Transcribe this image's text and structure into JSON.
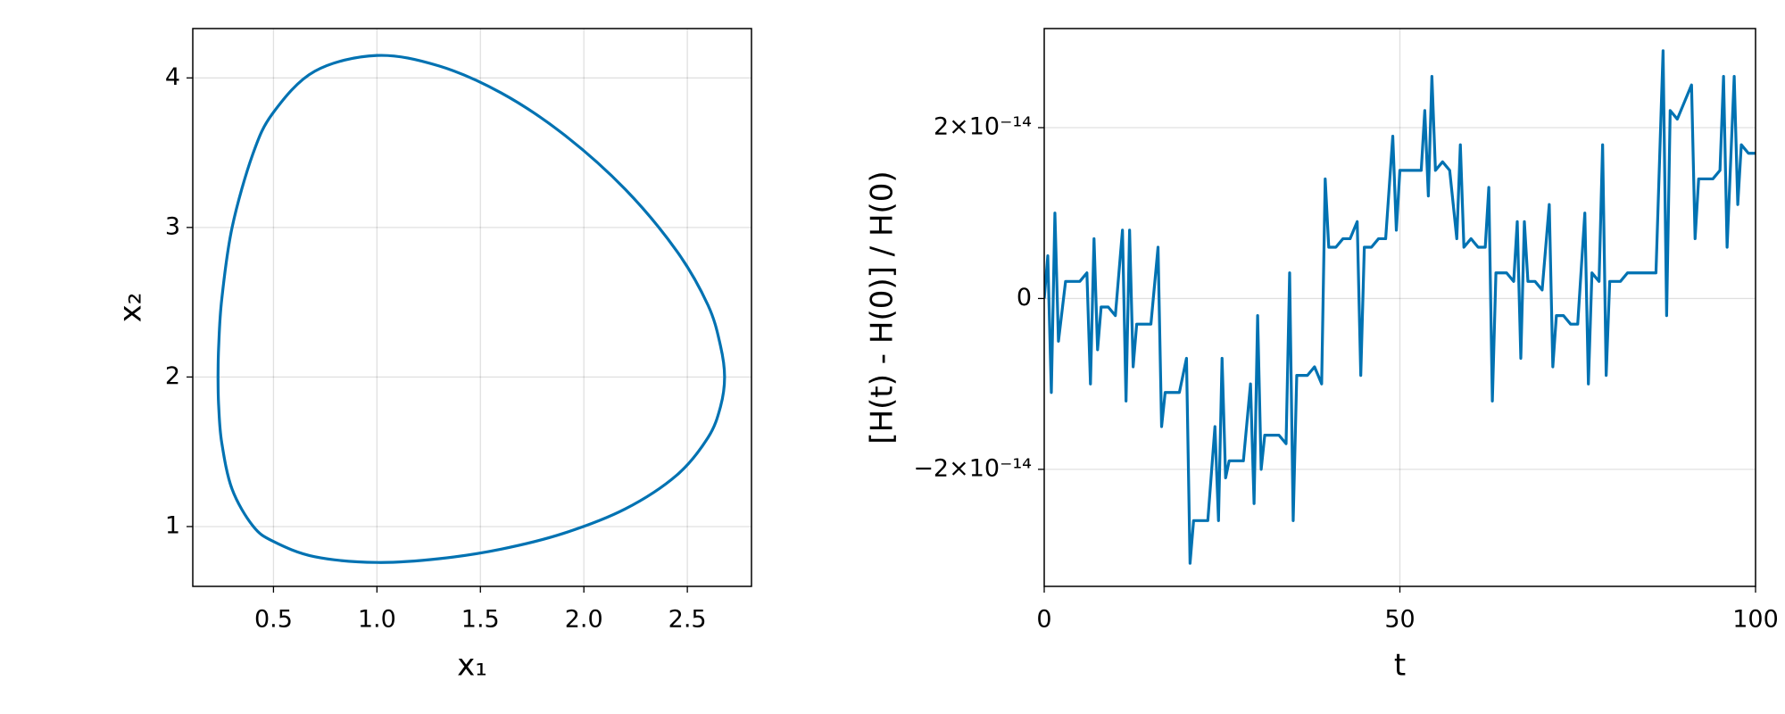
{
  "chart_data": [
    {
      "type": "line",
      "xlabel": "x₁",
      "ylabel": "x₂",
      "color": "#0072b2",
      "grid": true,
      "xlim": [
        0.11,
        2.81
      ],
      "ylim": [
        0.6,
        4.33
      ],
      "xticks": [
        0.5,
        {
          "value": 1.0,
          "label": "1.0"
        },
        1.5,
        {
          "value": 2.0,
          "label": "2.0"
        },
        2.5
      ],
      "yticks": [
        1,
        2,
        3,
        4
      ],
      "x": [
        0.232,
        0.235,
        0.25,
        0.3,
        0.4,
        0.5,
        0.7,
        1.0,
        1.3,
        1.6,
        1.9,
        2.2,
        2.45,
        2.6,
        2.66,
        2.68,
        2.66,
        2.6,
        2.45,
        2.2,
        1.9,
        1.6,
        1.3,
        1.0,
        0.7,
        0.5,
        0.4,
        0.3,
        0.25,
        0.235,
        0.232
      ],
      "values": [
        2,
        2.2,
        2.52,
        3.0,
        3.49,
        3.77,
        4.045,
        4.15,
        4.08,
        3.9,
        3.625,
        3.255,
        2.84,
        2.48,
        2.21,
        2,
        1.8,
        1.595,
        1.345,
        1.118,
        0.954,
        0.849,
        0.785,
        0.76,
        0.798,
        0.9,
        1.005,
        1.25,
        1.56,
        1.81,
        2
      ]
    },
    {
      "type": "line",
      "xlabel": "t",
      "ylabel": "[H(t) - H(0)] / H(0)",
      "color": "#0072b2",
      "grid": true,
      "xlim": [
        0,
        100
      ],
      "ylim": [
        -3.37e-14,
        3.16e-14
      ],
      "xticks": [
        0,
        50,
        100
      ],
      "yticks": [
        {
          "value": -2e-14,
          "label": "−2×10⁻¹⁴"
        },
        0,
        {
          "value": 2e-14,
          "label": "2×10⁻¹⁴"
        }
      ],
      "x": [
        0,
        0.5,
        1,
        1.5,
        2,
        3,
        4,
        5,
        6,
        6.5,
        7,
        7.5,
        8,
        9,
        10,
        11,
        11.5,
        12,
        12.5,
        13,
        14,
        15,
        16,
        16.5,
        17,
        18,
        19,
        20,
        20.5,
        21,
        22,
        23,
        24,
        24.5,
        25,
        25.5,
        26,
        27,
        28,
        29,
        29.5,
        30,
        30.5,
        31,
        32,
        33,
        34,
        34.5,
        35,
        35.5,
        36,
        37,
        38,
        39,
        39.5,
        40,
        41,
        42,
        43,
        44,
        44.5,
        45,
        46,
        47,
        48,
        49,
        49.5,
        50,
        51,
        52,
        53,
        53.5,
        54,
        54.5,
        55,
        56,
        57,
        58,
        58.5,
        59,
        60,
        61,
        62,
        62.5,
        63,
        63.5,
        64,
        65,
        66,
        66.5,
        67,
        67.5,
        68,
        69,
        70,
        71,
        71.5,
        72,
        73,
        74,
        75,
        76,
        76.5,
        77,
        78,
        78.5,
        79,
        79.5,
        80,
        81,
        82,
        83,
        84,
        85,
        86,
        87,
        87.5,
        88,
        89,
        90,
        91,
        91.5,
        92,
        93,
        94,
        95,
        95.5,
        96,
        97,
        97.5,
        98,
        99,
        100
      ],
      "values": [
        0,
        5e-15,
        -1.1e-14,
        1e-14,
        -5e-15,
        2e-15,
        2e-15,
        2e-15,
        3e-15,
        -1e-14,
        7e-15,
        -6e-15,
        -1e-15,
        -1e-15,
        -2e-15,
        8e-15,
        -1.2e-14,
        8e-15,
        -8e-15,
        -3e-15,
        -3e-15,
        -3e-15,
        6e-15,
        -1.5e-14,
        -1.1e-14,
        -1.1e-14,
        -1.1e-14,
        -7e-15,
        -3.1e-14,
        -2.6e-14,
        -2.6e-14,
        -2.6e-14,
        -1.5e-14,
        -2.6e-14,
        -7e-15,
        -2.1e-14,
        -1.9e-14,
        -1.9e-14,
        -1.9e-14,
        -1e-14,
        -2.4e-14,
        -2e-15,
        -2e-14,
        -1.6e-14,
        -1.6e-14,
        -1.6e-14,
        -1.7e-14,
        3e-15,
        -2.6e-14,
        -9e-15,
        -9e-15,
        -9e-15,
        -8e-15,
        -1e-14,
        1.4e-14,
        6e-15,
        6e-15,
        7e-15,
        7e-15,
        9e-15,
        -9e-15,
        6e-15,
        6e-15,
        7e-15,
        7e-15,
        1.9e-14,
        8e-15,
        1.5e-14,
        1.5e-14,
        1.5e-14,
        1.5e-14,
        2.2e-14,
        1.2e-14,
        2.6e-14,
        1.5e-14,
        1.6e-14,
        1.5e-14,
        7e-15,
        1.8e-14,
        6e-15,
        7e-15,
        6e-15,
        6e-15,
        1.3e-14,
        -1.2e-14,
        3e-15,
        3e-15,
        3e-15,
        2e-15,
        9e-15,
        -7e-15,
        9e-15,
        2e-15,
        2e-15,
        1e-15,
        1.1e-14,
        -8e-15,
        -2e-15,
        -2e-15,
        -3e-15,
        -3e-15,
        1e-14,
        -1e-14,
        3e-15,
        2e-15,
        1.8e-14,
        -9e-15,
        2e-15,
        2e-15,
        2e-15,
        3e-15,
        3e-15,
        3e-15,
        3e-15,
        3e-15,
        2.9e-14,
        -2e-15,
        2.2e-14,
        2.1e-14,
        2.3e-14,
        2.5e-14,
        7e-15,
        1.4e-14,
        1.4e-14,
        1.4e-14,
        1.5e-14,
        2.6e-14,
        6e-15,
        2.6e-14,
        1.1e-14,
        1.8e-14,
        1.7e-14,
        1.7e-14
      ]
    }
  ]
}
